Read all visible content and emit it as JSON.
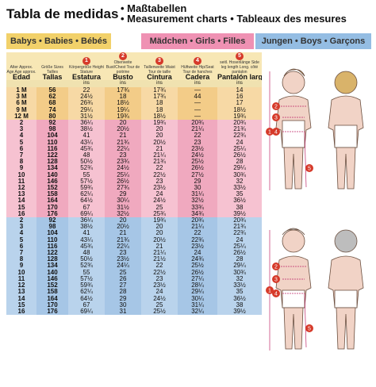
{
  "title": "Tabla de medidas",
  "subtitles": [
    "Maßtabellen",
    "Measurement charts • Tableaux des mesures"
  ],
  "bands": {
    "babys": "Babys • Babies • Bébés",
    "girls": "Mädchen • Girls • Filles",
    "boys": "Jungen • Boys • Garçons"
  },
  "columns": [
    {
      "num": "",
      "small": "Alter Approx. Age Age approx.",
      "big": "Edad"
    },
    {
      "num": "",
      "small": "Größe Sizes Tailles",
      "big": "Tallas"
    },
    {
      "num": "1",
      "small": "Körpergröße Height Stature",
      "big": "Estatura"
    },
    {
      "num": "2",
      "small": "Oberweite Bust/Chest Tour de poitrine",
      "big": "Busto"
    },
    {
      "num": "3",
      "small": "Taillenweite Waist Tour de taille",
      "big": "Cintura"
    },
    {
      "num": "4",
      "small": "Hüftweite Hip/Seat Tour de hanches",
      "big": "Cadera"
    },
    {
      "num": "5",
      "small": "seitl. Hosenlänge Side leg length Long. côté pantalon",
      "big": "Pantalón largo"
    }
  ],
  "units": [
    "",
    "",
    "ins",
    "ins",
    "ins",
    "ins",
    "ins"
  ],
  "baby_rows": [
    [
      "1 M",
      "56",
      "22",
      "17¾",
      "17¾",
      "—",
      "14"
    ],
    [
      "3 M",
      "62",
      "24½",
      "18",
      "17¾",
      "44",
      "16"
    ],
    [
      "6 M",
      "68",
      "26¾",
      "18½",
      "18",
      "—",
      "17"
    ],
    [
      "9 M",
      "74",
      "29¼",
      "19¼",
      "18",
      "—",
      "18½"
    ],
    [
      "12 M",
      "80",
      "31½",
      "19¾",
      "18½",
      "—",
      "19¾"
    ]
  ],
  "girl_rows": [
    [
      "2",
      "92",
      "36¼",
      "20",
      "19¾",
      "20¾",
      "20¾"
    ],
    [
      "3",
      "98",
      "38½",
      "20½",
      "20",
      "21¼",
      "21¾"
    ],
    [
      "4",
      "104",
      "41",
      "21",
      "20",
      "22",
      "22¾"
    ],
    [
      "5",
      "110",
      "43¼",
      "21¾",
      "20½",
      "23",
      "24"
    ],
    [
      "6",
      "116",
      "45¾",
      "22¼",
      "21",
      "23½",
      "25¼"
    ],
    [
      "7",
      "122",
      "48",
      "23",
      "21¼",
      "24½",
      "26½"
    ],
    [
      "8",
      "128",
      "50½",
      "23¾",
      "21¾",
      "25½",
      "28"
    ],
    [
      "9",
      "134",
      "52¾",
      "24½",
      "22",
      "26½",
      "29¼"
    ],
    [
      "10",
      "140",
      "55",
      "25¼",
      "22½",
      "27½",
      "30¾"
    ],
    [
      "11",
      "146",
      "57½",
      "26½",
      "23",
      "29",
      "32"
    ],
    [
      "12",
      "152",
      "59¾",
      "27¾",
      "23½",
      "30",
      "33½"
    ],
    [
      "13",
      "158",
      "62¼",
      "29",
      "24",
      "31¼",
      "35"
    ],
    [
      "14",
      "164",
      "64½",
      "30¼",
      "24½",
      "32½",
      "36½"
    ],
    [
      "15",
      "170",
      "67",
      "31½",
      "25",
      "33¾",
      "38"
    ],
    [
      "16",
      "176",
      "69¼",
      "32½",
      "25¾",
      "34¾",
      "39½"
    ]
  ],
  "boy_rows": [
    [
      "2",
      "92",
      "36¼",
      "20",
      "19¾",
      "20¾",
      "20¾"
    ],
    [
      "3",
      "98",
      "38½",
      "20½",
      "20",
      "21¼",
      "21¾"
    ],
    [
      "4",
      "104",
      "41",
      "21",
      "20",
      "22",
      "22¾"
    ],
    [
      "5",
      "110",
      "43¼",
      "21¾",
      "20½",
      "22¾",
      "24"
    ],
    [
      "6",
      "116",
      "45¾",
      "22¼",
      "21",
      "23½",
      "25¼"
    ],
    [
      "7",
      "122",
      "48",
      "23",
      "21¼",
      "24",
      "26½"
    ],
    [
      "8",
      "128",
      "50½",
      "23½",
      "21½",
      "24¾",
      "28"
    ],
    [
      "9",
      "134",
      "52¾",
      "24¼",
      "22",
      "25½",
      "29¼"
    ],
    [
      "10",
      "140",
      "55",
      "25",
      "22½",
      "26½",
      "30¾"
    ],
    [
      "11",
      "146",
      "57½",
      "26",
      "23",
      "27¼",
      "32"
    ],
    [
      "12",
      "152",
      "59¾",
      "27",
      "23½",
      "28¼",
      "33½"
    ],
    [
      "13",
      "158",
      "62¼",
      "28",
      "24",
      "29¼",
      "35"
    ],
    [
      "14",
      "164",
      "64½",
      "29",
      "24½",
      "30¼",
      "36½"
    ],
    [
      "15",
      "170",
      "67",
      "30",
      "25",
      "31¼",
      "38"
    ],
    [
      "16",
      "176",
      "69¼",
      "31",
      "25½",
      "32¼",
      "39½"
    ]
  ],
  "colors": {
    "baby": "#f7d9a5",
    "girl": "#f6c2d1",
    "boy": "#b9d3ec",
    "marker": "#d63a2a"
  },
  "figure_markers": [
    "1",
    "2",
    "3",
    "4",
    "5"
  ]
}
